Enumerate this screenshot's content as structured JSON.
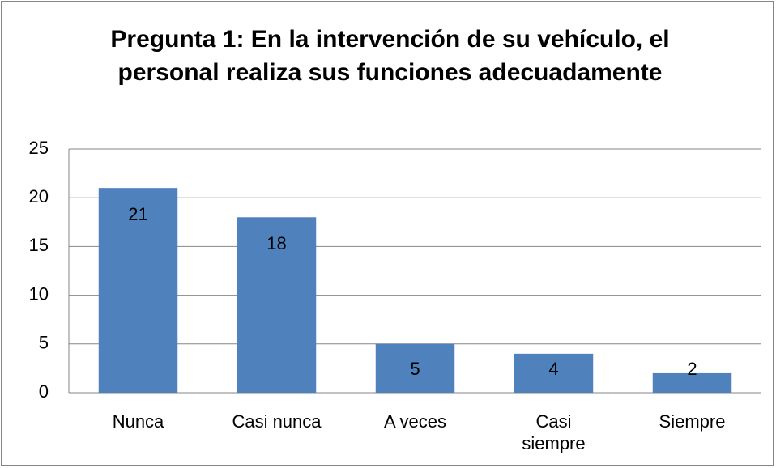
{
  "chart_data": {
    "type": "bar",
    "title": "Pregunta 1: En la intervención de su vehículo, el personal realiza sus funciones adecuadamente",
    "categories": [
      "Nunca",
      "Casi nunca",
      "A veces",
      "Casi siempre",
      "Siempre"
    ],
    "values": [
      21,
      18,
      5,
      4,
      2
    ],
    "color": "#4f81bd",
    "ylim": [
      0,
      25
    ],
    "yticks": [
      0,
      5,
      10,
      15,
      20,
      25
    ],
    "grid": true
  }
}
